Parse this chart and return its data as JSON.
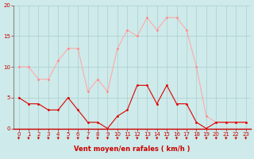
{
  "xlabel": "Vent moyen/en rafales ( km/h )",
  "background_color": "#ceeaea",
  "grid_color": "#aacfcf",
  "x": [
    0,
    1,
    2,
    3,
    4,
    5,
    6,
    7,
    8,
    9,
    10,
    11,
    12,
    13,
    14,
    15,
    16,
    17,
    18,
    19,
    20,
    21,
    22,
    23
  ],
  "vent_moyen": [
    5,
    4,
    4,
    3,
    3,
    5,
    3,
    1,
    1,
    0,
    2,
    3,
    7,
    7,
    4,
    7,
    4,
    4,
    1,
    0,
    1,
    1,
    1,
    1
  ],
  "vent_rafales": [
    10,
    10,
    8,
    8,
    11,
    13,
    13,
    6,
    8,
    6,
    13,
    16,
    15,
    18,
    16,
    18,
    18,
    16,
    10,
    2,
    1,
    1,
    1,
    1
  ],
  "line_color_moyen": "#dd0000",
  "line_color_rafales": "#ffaaaa",
  "marker_color_moyen": "#dd0000",
  "marker_color_rafales": "#ff8888",
  "marker_size": 2.0,
  "linewidth": 0.8,
  "ylim": [
    0,
    20
  ],
  "yticks": [
    0,
    5,
    10,
    15,
    20
  ],
  "xticks": [
    0,
    1,
    2,
    3,
    4,
    5,
    6,
    7,
    8,
    9,
    10,
    11,
    12,
    13,
    14,
    15,
    16,
    17,
    18,
    19,
    20,
    21,
    22,
    23
  ],
  "tick_fontsize": 5.0,
  "xlabel_fontsize": 6.0,
  "tick_color": "#cc0000",
  "spine_left_color": "#888888",
  "spine_bottom_color": "#cc0000",
  "arrow_color": "#cc0000"
}
